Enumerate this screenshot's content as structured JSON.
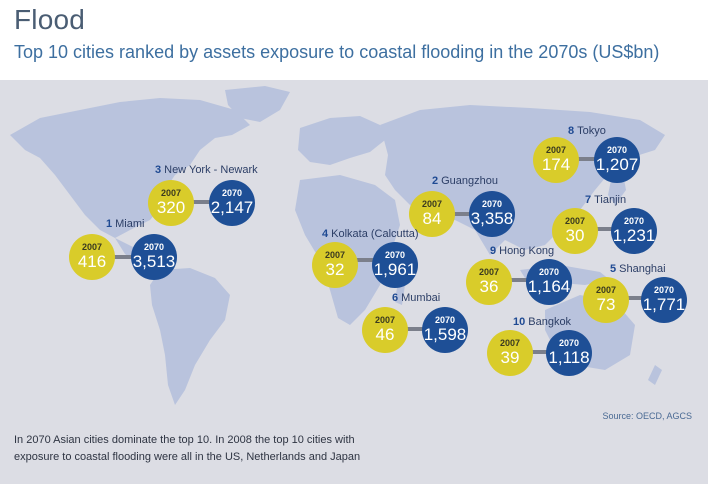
{
  "header": {
    "title": "Flood",
    "subtitle": "Top 10 cities ranked by assets exposure to coastal flooding in the 2070s (US$bn)"
  },
  "colors": {
    "y2007": "#d9cc2a",
    "y2070": "#1e4f96",
    "land": "#b9c3dd",
    "panel": "#dcdde4"
  },
  "years": {
    "a": "2007",
    "b": "2070"
  },
  "cities": [
    {
      "rank": "1",
      "name": "Miami",
      "v2007": "416",
      "v2070": "3,513"
    },
    {
      "rank": "2",
      "name": "Guangzhou",
      "v2007": "84",
      "v2070": "3,358"
    },
    {
      "rank": "3",
      "name": "New York - Newark",
      "v2007": "320",
      "v2070": "2,147"
    },
    {
      "rank": "4",
      "name": "Kolkata (Calcutta)",
      "v2007": "32",
      "v2070": "1,961"
    },
    {
      "rank": "5",
      "name": "Shanghai",
      "v2007": "73",
      "v2070": "1,771"
    },
    {
      "rank": "6",
      "name": "Mumbai",
      "v2007": "46",
      "v2070": "1,598"
    },
    {
      "rank": "7",
      "name": "Tianjin",
      "v2007": "30",
      "v2070": "1,231"
    },
    {
      "rank": "8",
      "name": "Tokyo",
      "v2007": "174",
      "v2070": "1,207"
    },
    {
      "rank": "9",
      "name": "Hong Kong",
      "v2007": "36",
      "v2070": "1,164"
    },
    {
      "rank": "10",
      "name": "Bangkok",
      "v2007": "39",
      "v2070": "1,118"
    }
  ],
  "footer": {
    "source": "Source: OECD, AGCS",
    "note": "In 2070 Asian cities dominate the top 10. In 2008 the top 10 cities with exposure to coastal flooding were all in the US, Netherlands and Japan"
  }
}
